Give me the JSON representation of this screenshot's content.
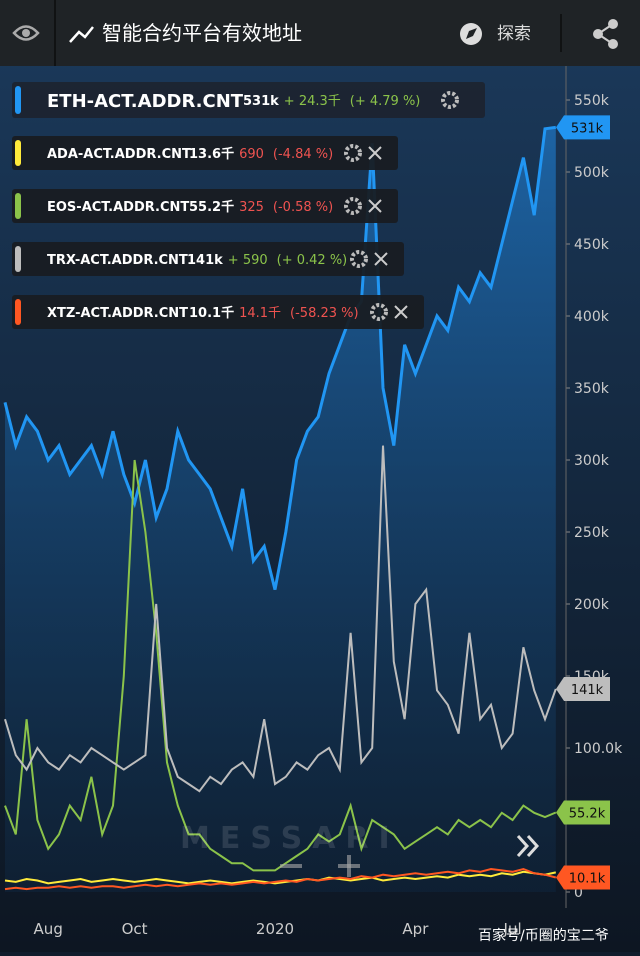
{
  "header": {
    "title": "智能合约平台有效地址",
    "explore": "探索"
  },
  "chart_data": {
    "type": "line",
    "categories": [
      null,
      null,
      null,
      null,
      "Aug",
      null,
      null,
      null,
      null,
      null,
      null,
      null,
      "Oct",
      null,
      null,
      null,
      null,
      null,
      null,
      null,
      null,
      null,
      null,
      null,
      null,
      "2020",
      null,
      null,
      null,
      null,
      null,
      null,
      null,
      null,
      null,
      null,
      null,
      null,
      "Apr",
      null,
      null,
      null,
      null,
      null,
      null,
      null,
      null,
      "Jul",
      null,
      null,
      null,
      null
    ],
    "ylim": [
      0,
      550000
    ],
    "yticks": [
      0,
      {
        "value": 100000,
        "label": "100.0k"
      },
      {
        "value": 150000,
        "label": "150k"
      },
      {
        "value": 200000,
        "label": "200k"
      },
      {
        "value": 250000,
        "label": "250k"
      },
      {
        "value": 300000,
        "label": "300k"
      },
      {
        "value": 350000,
        "label": "350k"
      },
      {
        "value": 400000,
        "label": "400k"
      },
      {
        "value": 450000,
        "label": "450k"
      },
      {
        "value": 500000,
        "label": "500k"
      },
      {
        "value": 550000,
        "label": "550k"
      }
    ],
    "watermark": "MESSARI",
    "series": [
      {
        "name": "ETH-ACT.ADDR.CNT",
        "color": "#2196f3",
        "area": true,
        "value_label": "531k",
        "change": "+ 24.3千",
        "pct": "(+ 4.79 %)",
        "change_color": "#8bc34a",
        "badge": "531k",
        "values": [
          340000,
          310000,
          330000,
          320000,
          300000,
          310000,
          290000,
          300000,
          310000,
          290000,
          320000,
          290000,
          270000,
          300000,
          260000,
          280000,
          320000,
          300000,
          290000,
          280000,
          260000,
          240000,
          280000,
          230000,
          240000,
          210000,
          250000,
          300000,
          320000,
          330000,
          360000,
          380000,
          400000,
          410000,
          520000,
          350000,
          310000,
          380000,
          360000,
          380000,
          400000,
          390000,
          420000,
          410000,
          430000,
          420000,
          450000,
          480000,
          510000,
          470000,
          530000,
          531000
        ]
      },
      {
        "name": "ADA-ACT.ADDR.CNT",
        "color": "#ffeb3b",
        "value_label": "13.6千",
        "change": "690",
        "pct": "(-4.84 %)",
        "change_color": "#ef5350",
        "values": [
          8000,
          7000,
          9000,
          8000,
          6000,
          7000,
          8000,
          9000,
          7000,
          8000,
          9000,
          8000,
          7000,
          8000,
          9000,
          8000,
          7000,
          6000,
          7000,
          8000,
          7000,
          6000,
          7000,
          8000,
          7000,
          6000,
          7000,
          8000,
          9000,
          8000,
          10000,
          9000,
          8000,
          9000,
          10000,
          8000,
          9000,
          10000,
          9000,
          10000,
          11000,
          10000,
          12000,
          11000,
          12000,
          11000,
          13000,
          12000,
          14000,
          13000,
          12000,
          13600
        ]
      },
      {
        "name": "EOS-ACT.ADDR.CNT",
        "color": "#8bc34a",
        "value_label": "55.2千",
        "change": "325",
        "pct": "(-0.58 %)",
        "change_color": "#ef5350",
        "badge": "55.2k",
        "values": [
          60000,
          40000,
          120000,
          50000,
          30000,
          40000,
          60000,
          50000,
          80000,
          40000,
          60000,
          150000,
          300000,
          250000,
          180000,
          90000,
          60000,
          40000,
          40000,
          30000,
          25000,
          20000,
          20000,
          15000,
          15000,
          15000,
          20000,
          25000,
          30000,
          40000,
          35000,
          40000,
          60000,
          30000,
          50000,
          45000,
          40000,
          30000,
          35000,
          40000,
          45000,
          40000,
          50000,
          45000,
          50000,
          45000,
          55000,
          50000,
          60000,
          55000,
          52000,
          55200
        ]
      },
      {
        "name": "TRX-ACT.ADDR.CNT",
        "color": "#bdbdbd",
        "value_label": "141k",
        "change": "+ 590",
        "pct": "(+ 0.42 %)",
        "change_color": "#8bc34a",
        "badge": "141k",
        "values": [
          120000,
          95000,
          85000,
          100000,
          90000,
          85000,
          95000,
          90000,
          100000,
          95000,
          90000,
          85000,
          90000,
          95000,
          200000,
          100000,
          80000,
          75000,
          70000,
          80000,
          75000,
          85000,
          90000,
          80000,
          120000,
          75000,
          80000,
          90000,
          85000,
          95000,
          100000,
          85000,
          180000,
          90000,
          100000,
          310000,
          160000,
          120000,
          200000,
          210000,
          140000,
          130000,
          110000,
          180000,
          120000,
          130000,
          100000,
          110000,
          170000,
          140000,
          120000,
          141000
        ]
      },
      {
        "name": "XTZ-ACT.ADDR.CNT",
        "color": "#ff5722",
        "value_label": "10.1千",
        "change": "14.1千",
        "pct": "(-58.23 %)",
        "change_color": "#ef5350",
        "badge": "10.1k",
        "values": [
          2000,
          3000,
          2000,
          3000,
          3000,
          4000,
          3000,
          4000,
          3000,
          4000,
          4000,
          3000,
          4000,
          5000,
          4000,
          5000,
          4000,
          5000,
          6000,
          5000,
          6000,
          5000,
          6000,
          7000,
          6000,
          7000,
          8000,
          7000,
          9000,
          8000,
          9000,
          10000,
          9000,
          11000,
          10000,
          12000,
          11000,
          12000,
          13000,
          12000,
          13000,
          14000,
          13000,
          15000,
          14000,
          16000,
          15000,
          14000,
          16000,
          13000,
          12000,
          10100
        ]
      }
    ]
  },
  "footer": "百家号/币圈的宝二爷"
}
